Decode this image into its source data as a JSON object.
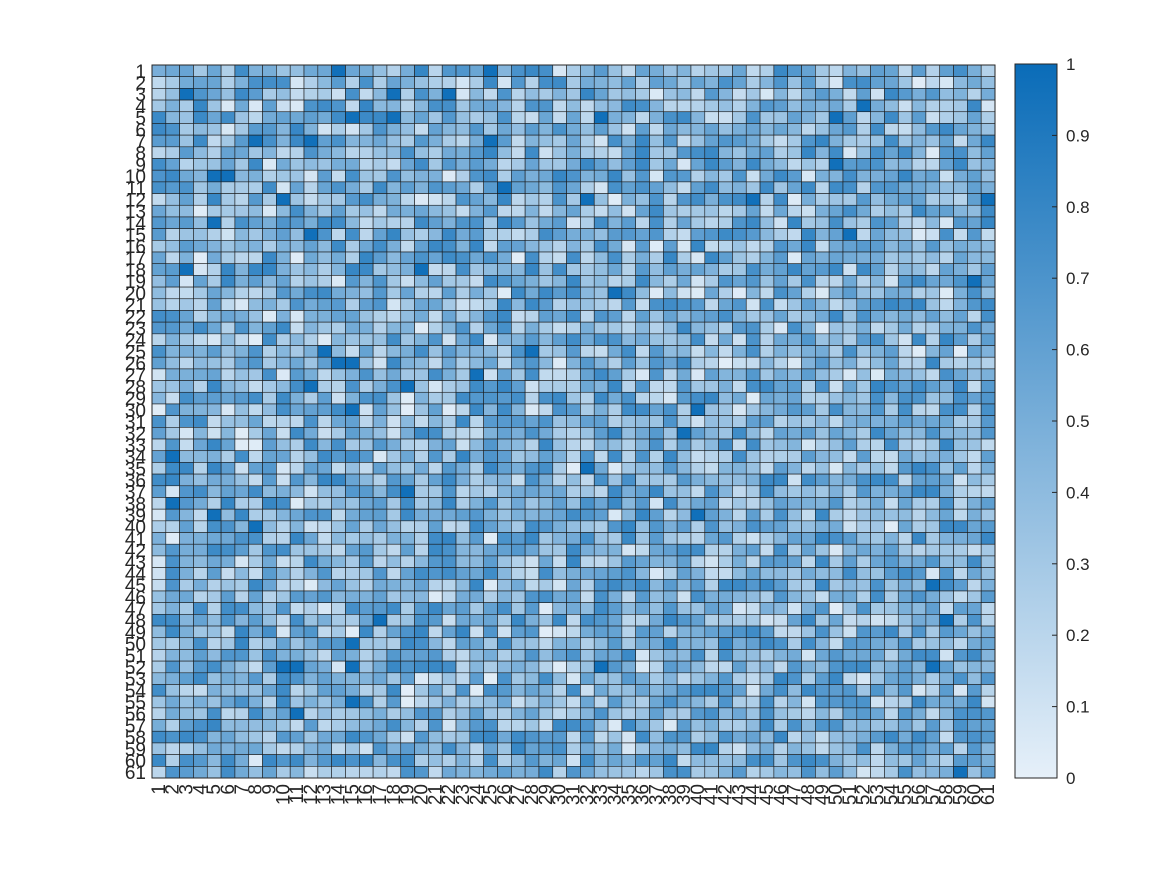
{
  "chart_data": {
    "type": "heatmap",
    "title": "",
    "xlabel": "",
    "ylabel": "",
    "rows": 61,
    "cols": 61,
    "x_labels": [
      "1",
      "2",
      "3",
      "4",
      "5",
      "6",
      "7",
      "8",
      "9",
      "10",
      "11",
      "12",
      "13",
      "14",
      "15",
      "16",
      "17",
      "18",
      "19",
      "20",
      "21",
      "22",
      "23",
      "24",
      "25",
      "26",
      "27",
      "28",
      "29",
      "30",
      "31",
      "32",
      "33",
      "34",
      "35",
      "36",
      "37",
      "38",
      "39",
      "40",
      "41",
      "42",
      "43",
      "44",
      "45",
      "46",
      "47",
      "48",
      "49",
      "50",
      "51",
      "52",
      "53",
      "54",
      "55",
      "56",
      "57",
      "58",
      "59",
      "60",
      "61"
    ],
    "y_labels": [
      "1",
      "2",
      "3",
      "4",
      "5",
      "6",
      "7",
      "8",
      "9",
      "10",
      "11",
      "12",
      "13",
      "14",
      "15",
      "16",
      "17",
      "18",
      "19",
      "20",
      "21",
      "22",
      "23",
      "24",
      "25",
      "26",
      "27",
      "28",
      "29",
      "30",
      "31",
      "32",
      "33",
      "34",
      "35",
      "36",
      "37",
      "38",
      "39",
      "40",
      "41",
      "42",
      "43",
      "44",
      "45",
      "46",
      "47",
      "48",
      "49",
      "50",
      "51",
      "52",
      "53",
      "54",
      "55",
      "56",
      "57",
      "58",
      "59",
      "60",
      "61"
    ],
    "value_range": [
      0,
      1
    ],
    "colorbar": {
      "ticks": [
        "0",
        "0.1",
        "0.2",
        "0.3",
        "0.4",
        "0.5",
        "0.6",
        "0.7",
        "0.8",
        "0.9",
        "1"
      ],
      "low_color": "#e6f0f9",
      "high_color": "#0a6cb8"
    },
    "grid": true,
    "note_values": "61x61 matrix of random values in [0,1]; individual cell values are not readable at this resolution and are generated deterministically by the rendering script",
    "highlighted_high_cells": [
      [
        1,
        14
      ],
      [
        1,
        25
      ],
      [
        3,
        3
      ],
      [
        3,
        18
      ],
      [
        3,
        22
      ],
      [
        4,
        52
      ],
      [
        5,
        15
      ],
      [
        5,
        18
      ],
      [
        5,
        33
      ],
      [
        5,
        50
      ],
      [
        7,
        8
      ],
      [
        7,
        12
      ],
      [
        7,
        25
      ],
      [
        9,
        50
      ],
      [
        10,
        5
      ],
      [
        10,
        6
      ],
      [
        11,
        26
      ],
      [
        12,
        10
      ],
      [
        12,
        32
      ],
      [
        12,
        44
      ],
      [
        12,
        61
      ],
      [
        14,
        5
      ],
      [
        15,
        12
      ],
      [
        15,
        51
      ],
      [
        18,
        3
      ],
      [
        18,
        20
      ],
      [
        19,
        60
      ],
      [
        20,
        34
      ],
      [
        25,
        13
      ],
      [
        25,
        28
      ],
      [
        26,
        14
      ],
      [
        26,
        15
      ],
      [
        27,
        24
      ],
      [
        28,
        12
      ],
      [
        28,
        19
      ],
      [
        30,
        15
      ],
      [
        30,
        40
      ],
      [
        32,
        39
      ],
      [
        34,
        2
      ],
      [
        35,
        32
      ],
      [
        37,
        19
      ],
      [
        38,
        2
      ],
      [
        39,
        5
      ],
      [
        39,
        40
      ],
      [
        40,
        8
      ],
      [
        45,
        57
      ],
      [
        48,
        17
      ],
      [
        48,
        58
      ],
      [
        50,
        15
      ],
      [
        52,
        10
      ],
      [
        52,
        11
      ],
      [
        52,
        15
      ],
      [
        52,
        33
      ],
      [
        52,
        57
      ],
      [
        55,
        15
      ],
      [
        56,
        11
      ],
      [
        61,
        59
      ]
    ]
  }
}
